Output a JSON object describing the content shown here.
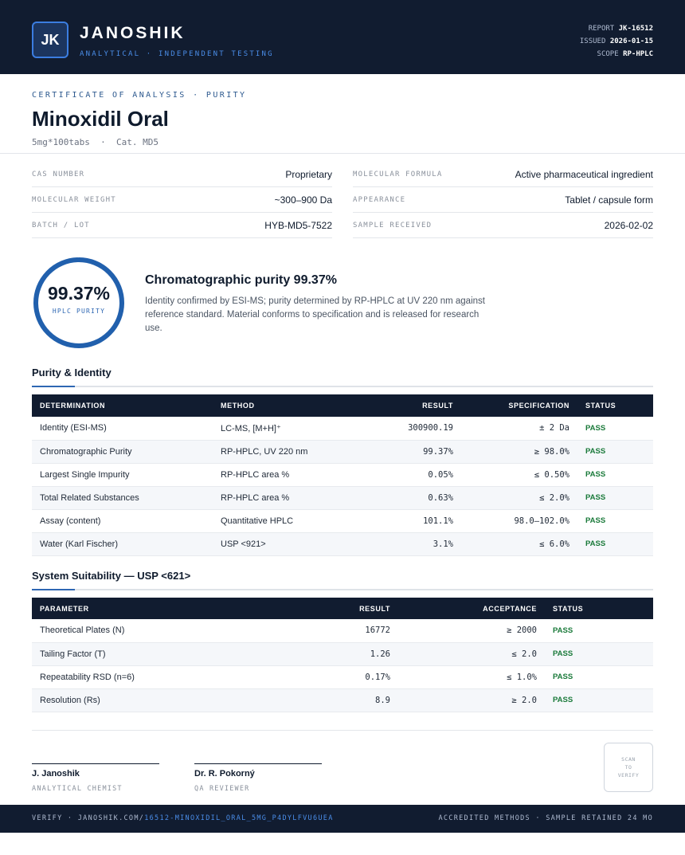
{
  "header": {
    "logo_initials": "JK",
    "brand": "JANOSHIK",
    "tagline": "ANALYTICAL · INDEPENDENT TESTING",
    "report_label": "REPORT",
    "report_value": "JK-16512",
    "issued_label": "ISSUED",
    "issued_value": "2026-01-15",
    "scope_label": "SCOPE",
    "scope_value": "RP-HPLC"
  },
  "document": {
    "eyebrow": "CERTIFICATE OF ANALYSIS · PURITY",
    "title": "Minoxidil Oral",
    "subtitle": "5mg*100tabs  ·  Cat. MD5"
  },
  "properties": {
    "cas_label": "CAS NUMBER",
    "cas_value": "Proprietary",
    "formula_label": "MOLECULAR FORMULA",
    "formula_value": "Active pharmaceutical ingredient",
    "mw_label": "MOLECULAR WEIGHT",
    "mw_value": "~300–900 Da",
    "appearance_label": "APPEARANCE",
    "appearance_value": "Tablet / capsule form",
    "batch_label": "BATCH / LOT",
    "batch_value": "HYB-MD5-7522",
    "received_label": "SAMPLE RECEIVED",
    "received_value": "2026-02-02"
  },
  "summary": {
    "purity_percent": 99.37,
    "purity_display": "99.37%",
    "purity_caption": "HPLC PURITY",
    "headline": "Chromatographic purity 99.37%",
    "text": "Identity confirmed by ESI-MS; purity determined by RP-HPLC at UV 220 nm against reference standard. Material conforms to specification and is released for research use."
  },
  "purity_table": {
    "section_title": "Purity & Identity",
    "headers": [
      "DETERMINATION",
      "METHOD",
      "RESULT",
      "SPECIFICATION",
      "STATUS"
    ],
    "rows": [
      [
        "Identity (ESI-MS)",
        "LC-MS, [M+H]⁺",
        "300900.19",
        "± 2 Da",
        "PASS"
      ],
      [
        "Chromatographic Purity",
        "RP-HPLC, UV 220 nm",
        "99.37%",
        "≥ 98.0%",
        "PASS"
      ],
      [
        "Largest Single Impurity",
        "RP-HPLC area %",
        "0.05%",
        "≤ 0.50%",
        "PASS"
      ],
      [
        "Total Related Substances",
        "RP-HPLC area %",
        "0.63%",
        "≤ 2.0%",
        "PASS"
      ],
      [
        "Assay (content)",
        "Quantitative HPLC",
        "101.1%",
        "98.0–102.0%",
        "PASS"
      ],
      [
        "Water (Karl Fischer)",
        "USP <921>",
        "3.1%",
        "≤ 6.0%",
        "PASS"
      ]
    ]
  },
  "suitability_table": {
    "section_title": "System Suitability — USP <621>",
    "headers": [
      "PARAMETER",
      "RESULT",
      "ACCEPTANCE",
      "STATUS"
    ],
    "rows": [
      [
        "Theoretical Plates (N)",
        "16772",
        "≥ 2000",
        "PASS"
      ],
      [
        "Tailing Factor (T)",
        "1.26",
        "≤ 2.0",
        "PASS"
      ],
      [
        "Repeatability RSD (n=6)",
        "0.17%",
        "≤ 1.0%",
        "PASS"
      ],
      [
        "Resolution (Rs)",
        "8.9",
        "≥ 2.0",
        "PASS"
      ]
    ]
  },
  "signatures": {
    "sig1_name": "J. Janoshik",
    "sig1_role": "ANALYTICAL CHEMIST",
    "sig2_name": "Dr. R. Pokorný",
    "sig2_role": "QA REVIEWER",
    "qr_text": "SCAN\nTO\nVERIFY"
  },
  "footer": {
    "verify_prefix": "VERIFY · JANOSHIK.COM/",
    "verify_code": "16512-MINOXIDIL_ORAL_5MG_P4DYLFVU6UEA",
    "right_text": "ACCREDITED METHODS · SAMPLE RETAINED 24 MO"
  },
  "colors": {
    "navy": "#111c30",
    "accent_blue": "#2e67b3",
    "pass_green": "#1a7a3a"
  }
}
